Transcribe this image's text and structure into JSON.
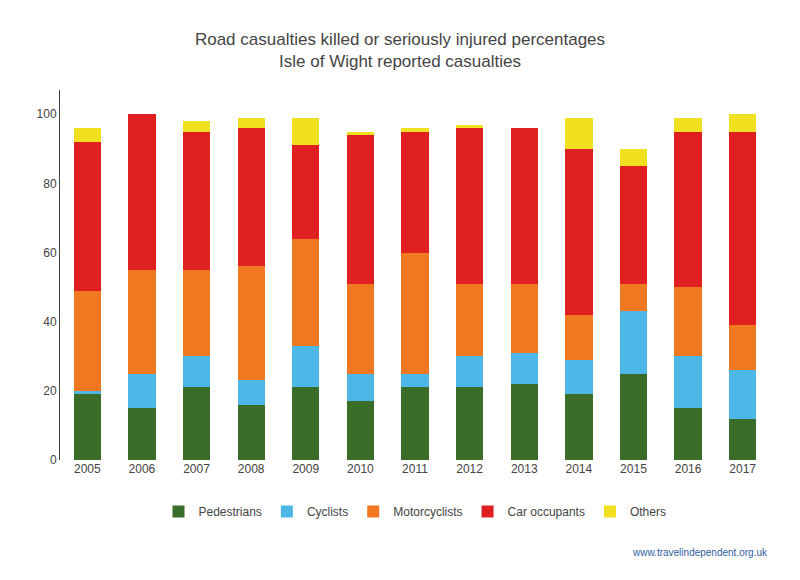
{
  "chart_data": {
    "type": "bar",
    "stacked": true,
    "title": "Road casualties killed or seriously injured percentages",
    "subtitle": "Isle of Wight reported casualties",
    "categories": [
      "2005",
      "2006",
      "2007",
      "2008",
      "2009",
      "2010",
      "2011",
      "2012",
      "2013",
      "2014",
      "2015",
      "2016",
      "2017"
    ],
    "series": [
      {
        "name": "Pedestrians",
        "color": "#3a6e28",
        "values": [
          19,
          15,
          21,
          16,
          21,
          17,
          21,
          21,
          22,
          19,
          25,
          15,
          12
        ]
      },
      {
        "name": "Cyclists",
        "color": "#4db8e8",
        "values": [
          1,
          10,
          9,
          7,
          12,
          8,
          4,
          9,
          9,
          10,
          18,
          15,
          14
        ]
      },
      {
        "name": "Motorcyclists",
        "color": "#f07820",
        "values": [
          29,
          30,
          25,
          33,
          31,
          26,
          35,
          21,
          20,
          13,
          8,
          20,
          13
        ]
      },
      {
        "name": "Car occupants",
        "color": "#e02020",
        "values": [
          43,
          45,
          40,
          40,
          27,
          43,
          35,
          45,
          45,
          48,
          34,
          45,
          56
        ]
      },
      {
        "name": "Others",
        "color": "#f0e020",
        "values": [
          4,
          0,
          3,
          3,
          8,
          1,
          1,
          1,
          0,
          9,
          5,
          4,
          5
        ]
      }
    ],
    "ylim": [
      0,
      107
    ],
    "yticks": [
      0,
      20,
      40,
      60,
      80,
      100
    ],
    "grid": false,
    "legend": "bottom",
    "annotations": [
      "www.travelindependent.org.uk"
    ]
  }
}
